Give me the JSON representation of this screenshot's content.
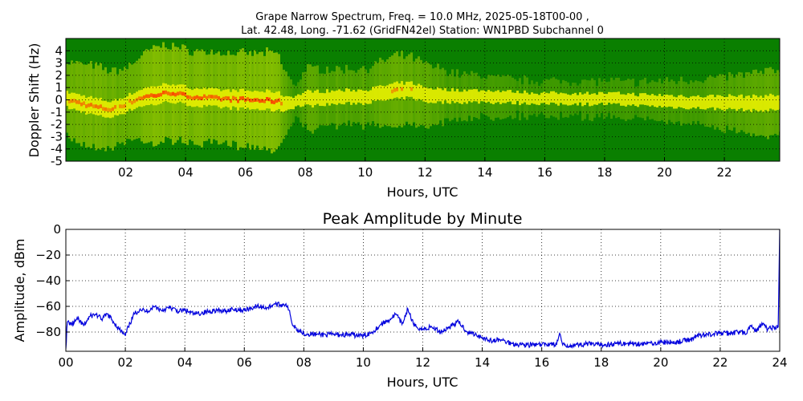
{
  "colors": {
    "spectrogram_background": "#0a7f00",
    "spectrogram_signal": "#e8f000",
    "spectrogram_peak": "#ff3000",
    "amplitude_line": "#0000dd",
    "grid": "#000000"
  },
  "chart_data": [
    {
      "type": "heatmap",
      "title_line1": "Grape Narrow Spectrum, Freq. = 10.0 MHz, 2025-05-18T00-00 ,",
      "title_line2": "Lat.  42.48, Long. -71.62 (GridFN42el) Station: WN1PBD Subchannel 0",
      "xlabel": "Hours, UTC",
      "ylabel": "Doppler Shift (Hz)",
      "xlim": [
        0,
        23.85
      ],
      "ylim": [
        -5,
        5
      ],
      "x_ticks": [
        "02",
        "04",
        "06",
        "08",
        "10",
        "12",
        "14",
        "16",
        "18",
        "20",
        "22"
      ],
      "x_tick_values": [
        2,
        4,
        6,
        8,
        10,
        12,
        14,
        16,
        18,
        20,
        22
      ],
      "y_ticks": [
        "4",
        "3",
        "2",
        "1",
        "0",
        "-1",
        "-2",
        "-3",
        "-4",
        "-5"
      ],
      "y_tick_values": [
        4,
        3,
        2,
        1,
        0,
        -1,
        -2,
        -3,
        -4,
        -5
      ],
      "grid": true,
      "doppler_trace": {
        "x": [
          0,
          0.5,
          1,
          1.5,
          2,
          2.5,
          3,
          3.5,
          4,
          5,
          6,
          7,
          7.3,
          7.5,
          8,
          9,
          10,
          11,
          11.5,
          12,
          13,
          14,
          15,
          16,
          17,
          18,
          19,
          20,
          21,
          22,
          23,
          23.8
        ],
        "y": [
          0.0,
          -0.3,
          -0.6,
          -0.8,
          -0.3,
          0.2,
          0.4,
          0.6,
          0.3,
          0.1,
          0.0,
          -0.1,
          -0.3,
          -0.2,
          0.1,
          0.2,
          0.3,
          0.7,
          0.8,
          0.4,
          0.3,
          0.3,
          0.2,
          0.1,
          0.1,
          0.1,
          0.0,
          -0.1,
          -0.2,
          -0.2,
          -0.3,
          -0.2
        ]
      },
      "signal_intensity_by_hour": {
        "x": [
          0,
          1,
          2,
          3,
          4,
          5,
          6,
          7,
          7.6,
          8,
          9,
          10,
          11,
          12,
          13,
          14,
          15,
          16,
          17,
          18,
          19,
          20,
          21,
          22,
          23,
          23.8
        ],
        "level": [
          0.6,
          0.65,
          0.55,
          0.8,
          0.75,
          0.75,
          0.75,
          0.8,
          0.15,
          0.45,
          0.4,
          0.4,
          0.55,
          0.45,
          0.3,
          0.25,
          0.2,
          0.2,
          0.2,
          0.2,
          0.2,
          0.25,
          0.3,
          0.35,
          0.45,
          0.5
        ]
      }
    },
    {
      "type": "line",
      "title": "Peak Amplitude by Minute",
      "xlabel": "Hours, UTC",
      "ylabel": "Amplitude, dBm",
      "xlim": [
        0,
        24
      ],
      "ylim": [
        -95,
        0
      ],
      "x_ticks": [
        "00",
        "02",
        "04",
        "06",
        "08",
        "10",
        "12",
        "14",
        "16",
        "18",
        "20",
        "22",
        "24"
      ],
      "x_tick_values": [
        0,
        2,
        4,
        6,
        8,
        10,
        12,
        14,
        16,
        18,
        20,
        22,
        24
      ],
      "y_ticks": [
        "0",
        "−20",
        "−40",
        "−60",
        "−80"
      ],
      "y_tick_values": [
        0,
        -20,
        -40,
        -60,
        -80
      ],
      "grid": true,
      "series": [
        {
          "x": [
            0,
            0.05,
            0.2,
            0.4,
            0.6,
            0.8,
            1.0,
            1.2,
            1.4,
            1.6,
            1.8,
            2.0,
            2.1,
            2.3,
            2.5,
            2.7,
            3.0,
            3.2,
            3.5,
            3.8,
            4.0,
            4.3,
            4.6,
            5.0,
            5.3,
            5.6,
            6.0,
            6.4,
            6.8,
            7.0,
            7.2,
            7.4,
            7.5,
            7.6,
            7.8,
            8.0,
            8.5,
            9.0,
            9.5,
            10.0,
            10.3,
            10.6,
            10.9,
            11.1,
            11.3,
            11.5,
            11.7,
            12.0,
            12.3,
            12.6,
            12.9,
            13.2,
            13.5,
            13.8,
            14.0,
            14.3,
            14.6,
            15.0,
            15.5,
            16.0,
            16.3,
            16.5,
            16.6,
            16.7,
            16.8,
            17.0,
            17.3,
            17.5,
            17.8,
            18.0,
            18.5,
            19.0,
            19.5,
            20.0,
            20.5,
            21.0,
            21.2,
            21.5,
            22.0,
            22.3,
            22.6,
            22.9,
            23.0,
            23.2,
            23.4,
            23.6,
            23.8,
            23.95,
            24.0
          ],
          "y": [
            -93,
            -72,
            -74,
            -70,
            -75,
            -68,
            -66,
            -70,
            -66,
            -72,
            -78,
            -83,
            -76,
            -66,
            -62,
            -64,
            -60,
            -63,
            -61,
            -64,
            -63,
            -66,
            -65,
            -63,
            -64,
            -62,
            -63,
            -60,
            -61,
            -58,
            -59,
            -58,
            -63,
            -73,
            -78,
            -81,
            -82,
            -82,
            -82,
            -83,
            -80,
            -74,
            -70,
            -66,
            -74,
            -62,
            -75,
            -78,
            -76,
            -80,
            -76,
            -72,
            -80,
            -82,
            -84,
            -87,
            -86,
            -89,
            -90,
            -90,
            -89,
            -90,
            -81,
            -90,
            -91,
            -90,
            -90,
            -89,
            -90,
            -90,
            -89,
            -89,
            -89,
            -88,
            -88,
            -86,
            -83,
            -82,
            -81,
            -81,
            -80,
            -81,
            -75,
            -80,
            -73,
            -78,
            -76,
            -76,
            0
          ]
        }
      ]
    }
  ]
}
